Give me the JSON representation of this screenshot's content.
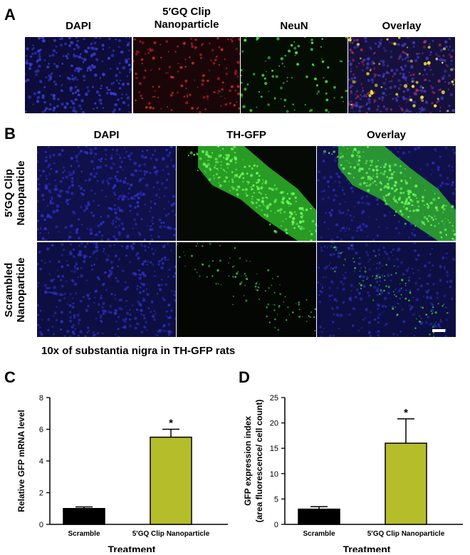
{
  "panel_a": {
    "letter": "A",
    "headers": [
      "DAPI",
      "5′GQ Clip\nNanoparticle",
      "NeuN",
      "Overlay"
    ]
  },
  "panel_b": {
    "letter": "B",
    "headers": [
      "DAPI",
      "TH-GFP",
      "Overlay"
    ],
    "row_labels": [
      "5′GQ Clip\nNanoparticle",
      "Scrambled\nNanoparticle"
    ],
    "caption": "10x of substantia nigra in TH-GFP rats"
  },
  "colors": {
    "dapi": "#1a1f9e",
    "red": "#c0202a",
    "green": "#3fe23a",
    "yellow": "#f2ea3a",
    "bar_scramble": "#000000",
    "bar_treat": "#b6bd2b"
  },
  "chart_data": [
    {
      "type": "bar",
      "letter": "C",
      "categories": [
        "Scramble",
        "5′GQ Clip Nanoparticle"
      ],
      "values": [
        1.0,
        5.5
      ],
      "errors": [
        0.1,
        0.5
      ],
      "significance": [
        "",
        "*"
      ],
      "ylabel": "Relative GFP mRNA level",
      "xlabel": "Treatment",
      "ylim": [
        0,
        8
      ],
      "yticks": [
        0,
        2,
        4,
        6,
        8
      ]
    },
    {
      "type": "bar",
      "letter": "D",
      "categories": [
        "Scramble",
        "5′GQ Clip Nanoparticle"
      ],
      "values": [
        3.0,
        16.0
      ],
      "errors": [
        0.5,
        4.8
      ],
      "significance": [
        "",
        "*"
      ],
      "ylabel": "GFP expression index\n(area fluorescence/ cell count)",
      "xlabel": "Treatment",
      "ylim": [
        0,
        25
      ],
      "yticks": [
        0,
        5,
        10,
        15,
        20,
        25
      ]
    }
  ]
}
